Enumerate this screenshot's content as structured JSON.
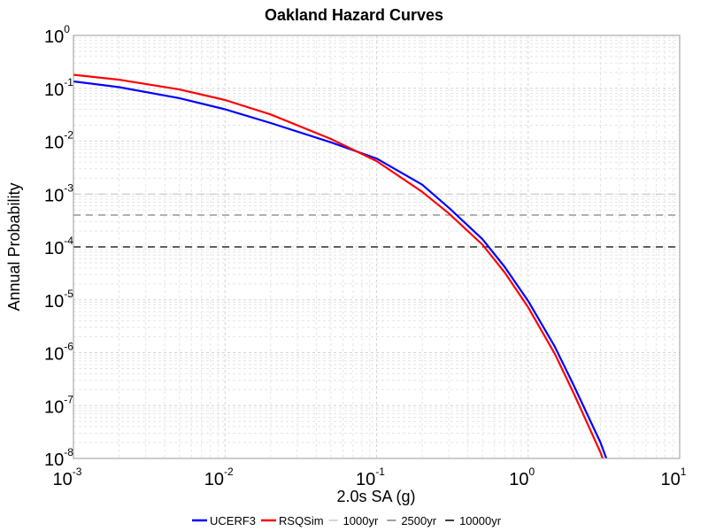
{
  "chart_data": {
    "type": "line",
    "title": "Oakland Hazard Curves",
    "xlabel": "2.0s SA (g)",
    "ylabel": "Annual Probability",
    "x_scale": "log",
    "y_scale": "log",
    "xlim": [
      0.001,
      10
    ],
    "ylim": [
      1e-08,
      1
    ],
    "grid": true,
    "legend_position": "bottom",
    "x_ticks": [
      {
        "base": "10",
        "exp": "-3"
      },
      {
        "base": "10",
        "exp": "-2"
      },
      {
        "base": "10",
        "exp": "-1"
      },
      {
        "base": "10",
        "exp": "0"
      },
      {
        "base": "10",
        "exp": "1"
      }
    ],
    "y_ticks": [
      {
        "base": "10",
        "exp": "0"
      },
      {
        "base": "10",
        "exp": "-1"
      },
      {
        "base": "10",
        "exp": "-2"
      },
      {
        "base": "10",
        "exp": "-3"
      },
      {
        "base": "10",
        "exp": "-4"
      },
      {
        "base": "10",
        "exp": "-5"
      },
      {
        "base": "10",
        "exp": "-6"
      },
      {
        "base": "10",
        "exp": "-7"
      },
      {
        "base": "10",
        "exp": "-8"
      }
    ],
    "series": [
      {
        "name": "UCERF3",
        "color": "#0000ff",
        "x": [
          0.001,
          0.002,
          0.005,
          0.01,
          0.02,
          0.05,
          0.1,
          0.2,
          0.3,
          0.5,
          0.7,
          1.0,
          1.5,
          2.0,
          3.0,
          3.8
        ],
        "y": [
          0.135,
          0.105,
          0.065,
          0.04,
          0.022,
          0.0095,
          0.0047,
          0.0015,
          0.00055,
          0.00014,
          4.2e-05,
          9.5e-06,
          1.3e-06,
          2.4e-07,
          2e-08,
          3.2e-09
        ]
      },
      {
        "name": "RSQSim",
        "color": "#ff0000",
        "x": [
          0.001,
          0.002,
          0.005,
          0.01,
          0.02,
          0.05,
          0.1,
          0.2,
          0.3,
          0.5,
          0.7,
          1.0,
          1.5,
          2.0,
          3.0,
          3.6
        ],
        "y": [
          0.18,
          0.145,
          0.095,
          0.06,
          0.032,
          0.011,
          0.0042,
          0.0011,
          0.00043,
          0.00011,
          3.3e-05,
          7.2e-06,
          9.5e-07,
          1.7e-07,
          1.3e-08,
          3.2e-09
        ]
      }
    ],
    "reference_lines": [
      {
        "name": "1000yr",
        "y": 0.001,
        "color": "#c8c8c8"
      },
      {
        "name": "2500yr",
        "y": 0.0004,
        "color": "#808080"
      },
      {
        "name": "10000yr",
        "y": 0.0001,
        "color": "#000000"
      }
    ]
  }
}
